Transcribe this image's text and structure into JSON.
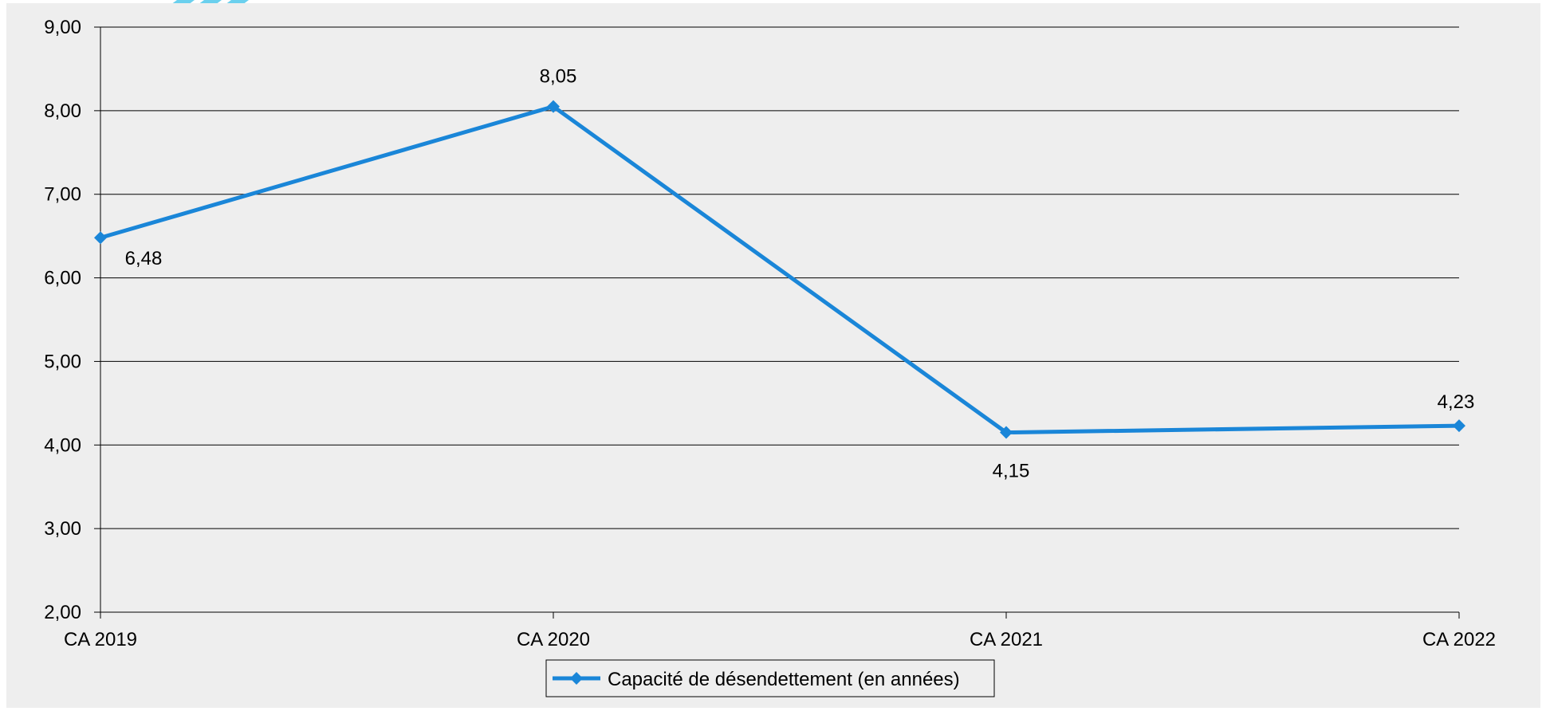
{
  "chart_data": {
    "type": "line",
    "categories": [
      "CA 2019",
      "CA 2020",
      "CA 2021",
      "CA 2022"
    ],
    "series": [
      {
        "name": "Capacité de désendettement (en années)",
        "values": [
          6.48,
          8.05,
          4.15,
          4.23
        ],
        "data_labels": [
          "6,48",
          "8,05",
          "4,15",
          "4,23"
        ],
        "color": "#1a86d8",
        "marker": "diamond"
      }
    ],
    "ylim": [
      2,
      9
    ],
    "yticks": [
      2,
      3,
      4,
      5,
      6,
      7,
      8,
      9
    ],
    "ytick_labels": [
      "2,00",
      "3,00",
      "4,00",
      "5,00",
      "6,00",
      "7,00",
      "8,00",
      "9,00"
    ],
    "grid": true,
    "legend_position": "bottom-center",
    "title": "",
    "xlabel": "",
    "ylabel": ""
  },
  "colors": {
    "plot_background": "#eeeeee",
    "page_background": "#ffffff",
    "line": "#1a86d8",
    "gridline": "#000000",
    "decorative_stripes": "#6ad0ee"
  }
}
